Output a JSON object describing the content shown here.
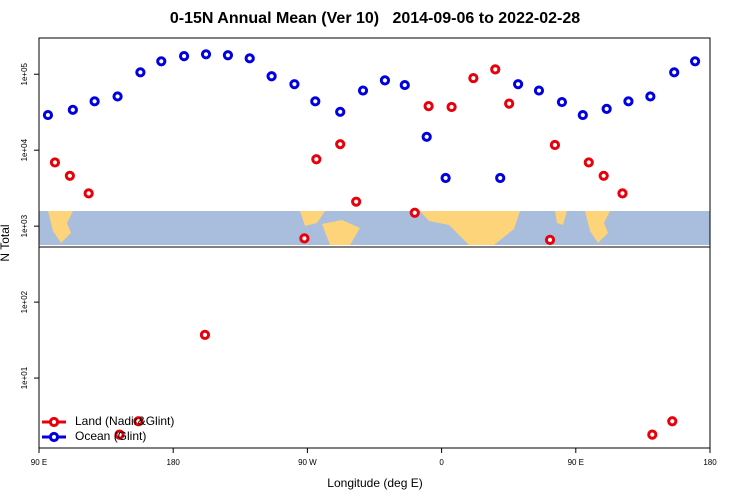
{
  "chart_data": {
    "type": "scatter",
    "title": "0-15N Annual Mean (Ver 10)   2014-09-06 to 2022-02-28",
    "x_label": "Longitude (deg E)",
    "y_label": "N Total",
    "xlim": [
      90,
      540
    ],
    "xticks": [
      {
        "value": 90,
        "label": "90 E"
      },
      {
        "value": 180,
        "label": "180"
      },
      {
        "value": 270,
        "label": "90 W"
      },
      {
        "value": 360,
        "label": "0"
      },
      {
        "value": 450,
        "label": "90 E"
      },
      {
        "value": 540,
        "label": "180"
      }
    ],
    "ylim": [
      1.2,
      300000
    ],
    "log_y": true,
    "yticks": [
      {
        "value": 10,
        "label": "1e+01"
      },
      {
        "value": 100,
        "label": "1e+02"
      },
      {
        "value": 1000,
        "label": "1e+03"
      },
      {
        "value": 10000,
        "label": "1e+04"
      },
      {
        "value": 100000,
        "label": "1e+05"
      }
    ],
    "legend_position": "bottom-left",
    "series": [
      {
        "name": "Land (Nadir&Glint)",
        "color": "#e8000b",
        "x": [
          100.7,
          110.7,
          123.3,
          144,
          156.7,
          201.3,
          268,
          276,
          292,
          302.7,
          342,
          351.3,
          366.7,
          381.3,
          396,
          405.3,
          432.7,
          436,
          458.7,
          468.7,
          481.3,
          501.3,
          514.7
        ],
        "values": [
          6900,
          4600,
          2700,
          1.8,
          2.7,
          37,
          690,
          7600,
          12000,
          2100,
          1500,
          38000,
          37000,
          89000,
          116000,
          41000,
          660,
          11700,
          6900,
          4600,
          2700,
          1.8,
          2.7
        ]
      },
      {
        "name": "Ocean (Glint)",
        "color": "#0000e0",
        "x": [
          96,
          112.7,
          127.3,
          142.7,
          158,
          172,
          187.3,
          202,
          216.7,
          231.3,
          246,
          261.3,
          275.3,
          292,
          307.3,
          322,
          335.3,
          350,
          362.7,
          399.3,
          411.3,
          425.3,
          440.7,
          454.7,
          470.7,
          485.3,
          500,
          516,
          530
        ],
        "values": [
          29000,
          34000,
          44000,
          51000,
          106000,
          148000,
          173000,
          183000,
          178000,
          162000,
          94000,
          74000,
          44000,
          32000,
          61000,
          83000,
          72000,
          15000,
          4300,
          4300,
          74000,
          61000,
          43000,
          29000,
          35000,
          44000,
          51000,
          106000,
          148000
        ]
      }
    ]
  }
}
